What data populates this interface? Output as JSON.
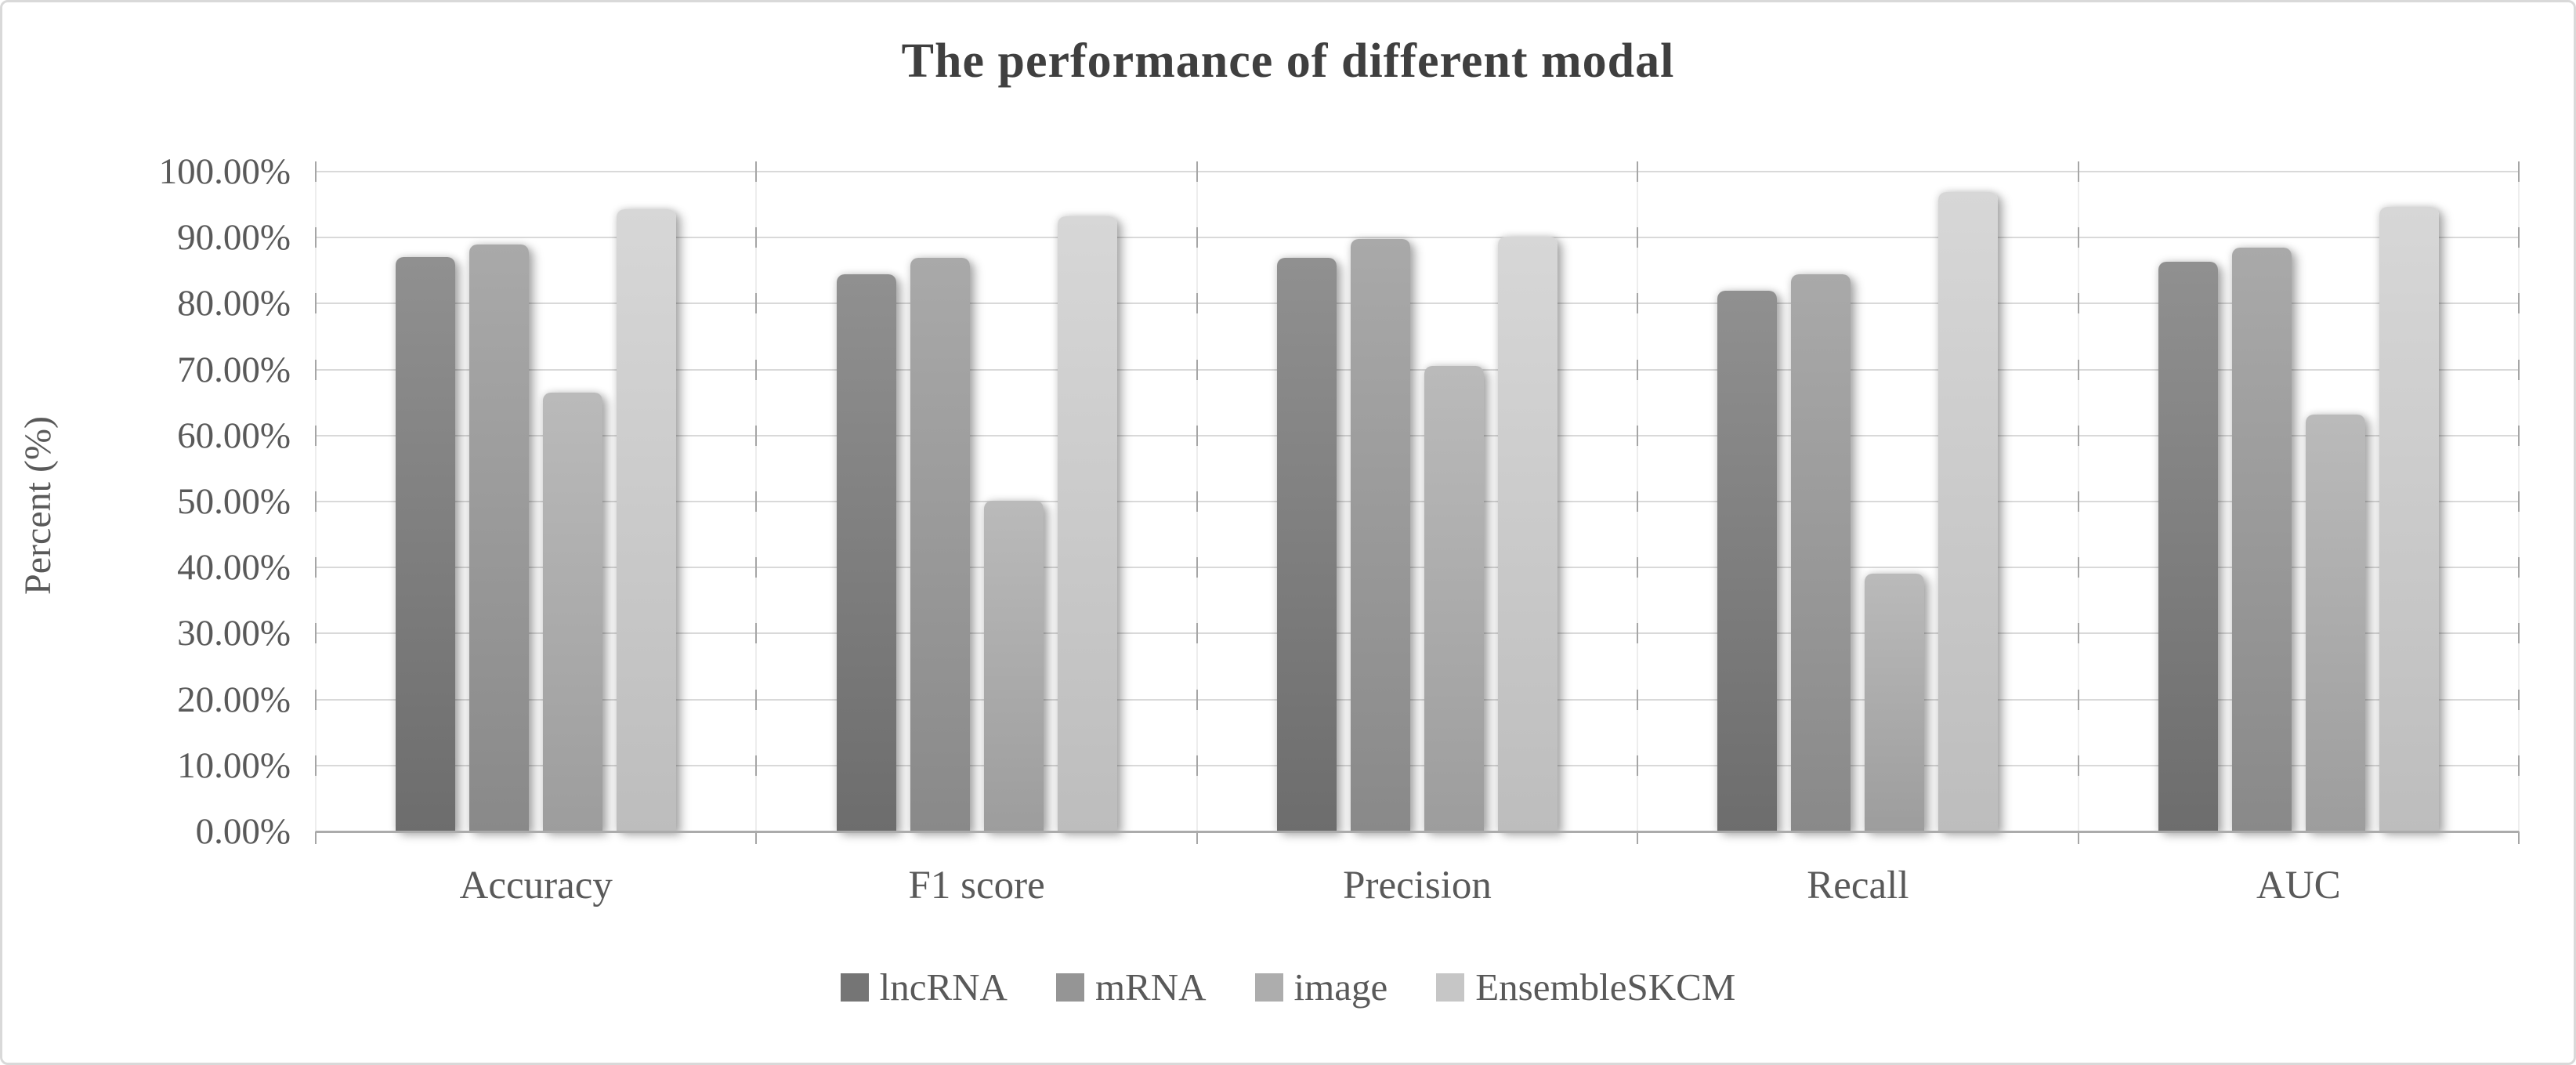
{
  "chart_data": {
    "type": "bar",
    "title": "The performance of different modal",
    "ylabel": "Percent (%)",
    "xlabel": "",
    "categories": [
      "Accuracy",
      "F1 score",
      "Precision",
      "Recall",
      "AUC"
    ],
    "series": [
      {
        "name": "lncRNA",
        "color": "#757575",
        "gradient_top": "#909090",
        "gradient_bottom": "#6d6d6d",
        "values": [
          87.0,
          84.4,
          86.9,
          82.0,
          86.4
        ]
      },
      {
        "name": "mRNA",
        "color": "#959595",
        "gradient_top": "#a9a9a9",
        "gradient_bottom": "#898989",
        "values": [
          89.0,
          86.9,
          89.8,
          84.4,
          88.5
        ]
      },
      {
        "name": "image",
        "color": "#adadad",
        "gradient_top": "#bababa",
        "gradient_bottom": "#9d9d9d",
        "values": [
          66.5,
          50.1,
          70.6,
          39.1,
          63.2
        ]
      },
      {
        "name": "EnsembleSKCM",
        "color": "#c6c6c6",
        "gradient_top": "#d7d7d7",
        "gradient_bottom": "#bdbdbd",
        "values": [
          94.3,
          93.2,
          90.1,
          96.9,
          94.6
        ]
      }
    ],
    "ylim": [
      0,
      100
    ],
    "ytick_step": 10,
    "yticks": [
      "0.00%",
      "10.00%",
      "20.00%",
      "30.00%",
      "40.00%",
      "50.00%",
      "60.00%",
      "70.00%",
      "80.00%",
      "90.00%",
      "100.00%"
    ],
    "grid": true,
    "legend_position": "bottom"
  }
}
